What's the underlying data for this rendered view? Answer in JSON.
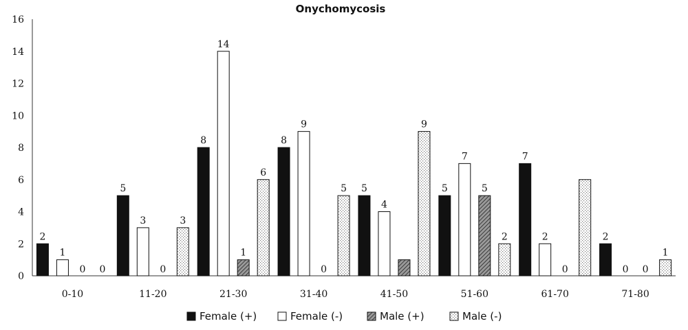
{
  "chart_data": {
    "type": "bar",
    "title": "Onychomycosis",
    "categories": [
      "0-10",
      "11-20",
      "21-30",
      "31-40",
      "41-50",
      "51-60",
      "61-70",
      "71-80"
    ],
    "series": [
      {
        "name": "Female (+)",
        "values": [
          2,
          5,
          8,
          8,
          5,
          5,
          7,
          2
        ],
        "fill": "solid",
        "color": "#111111"
      },
      {
        "name": "Female (-)",
        "values": [
          1,
          3,
          14,
          9,
          4,
          7,
          2,
          0
        ],
        "fill": "empty",
        "color": "#ffffff"
      },
      {
        "name": "Male (+)",
        "values": [
          0,
          0,
          1,
          0,
          1,
          5,
          0,
          0
        ],
        "fill": "hatch",
        "color": "#555555"
      },
      {
        "name": "Male (-)",
        "values": [
          0,
          3,
          6,
          5,
          9,
          2,
          6,
          1
        ],
        "fill": "dots",
        "color": "#bbbbbb"
      }
    ],
    "shown_labels": [
      [
        true,
        true,
        true,
        true,
        true,
        true,
        true,
        true
      ],
      [
        true,
        true,
        true,
        true,
        true,
        true,
        true,
        true
      ],
      [
        true,
        true,
        true,
        true,
        false,
        true,
        true,
        true
      ],
      [
        true,
        true,
        true,
        true,
        true,
        true,
        false,
        true
      ]
    ],
    "yticks": [
      "0",
      "2",
      "4",
      "6",
      "8",
      "10",
      "12",
      "14",
      "16"
    ],
    "ylim": [
      0,
      16
    ],
    "xlabel": "",
    "ylabel": "",
    "grid": false,
    "legend_position": "bottom"
  }
}
